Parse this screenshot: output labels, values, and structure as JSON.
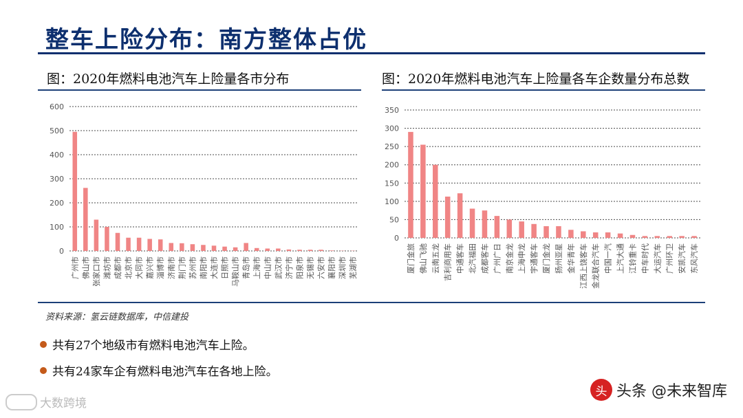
{
  "page": {
    "title": "整车上险分布：南方整体占优",
    "source": "资料来源：氢云链数据库，中信建投",
    "bullets": [
      "共有27个地级市有燃料电池汽车上险。",
      "共有24家车企有燃料电池汽车在各地上险。"
    ],
    "watermark_left": "大数跨境",
    "watermark_right": "头条 @未来智库",
    "watermark_badge": "头"
  },
  "colors": {
    "bar": "#f08585",
    "grid": "#4a4a4a",
    "title": "#0d2f6e",
    "rule": "#1c3f78"
  },
  "chart_data": [
    {
      "type": "bar",
      "title": "图：2020年燃料电池汽车上险量各市分布",
      "categories": [
        "广州市",
        "佛山市",
        "张家口市",
        "潍坊市",
        "成都市",
        "北京市",
        "大同市",
        "嘉兴市",
        "淄博市",
        "济南市",
        "荆门市",
        "苏州市",
        "南阳市",
        "大连市",
        "日照市",
        "马鞍山市",
        "青岛市",
        "上海市",
        "中山市",
        "武汉市",
        "济宁市",
        "阳泉市",
        "无锡市",
        "六安市",
        "襄阳市",
        "深圳市",
        "芜湖市"
      ],
      "values": [
        495,
        262,
        130,
        100,
        75,
        55,
        55,
        50,
        48,
        33,
        32,
        28,
        25,
        22,
        18,
        15,
        33,
        12,
        10,
        10,
        6,
        5,
        5,
        5,
        2,
        1,
        1
      ],
      "ylim": [
        0,
        600
      ],
      "yticks": [
        0,
        100,
        200,
        300,
        400,
        500,
        600
      ],
      "grid": true,
      "xlabel": "",
      "ylabel": ""
    },
    {
      "type": "bar",
      "title": "图：2020年燃料电池汽车上险量各车企数量分布总数",
      "categories": [
        "厦门金旅",
        "佛山飞驰",
        "云南五龙",
        "吉利商用车",
        "中通客车",
        "北汽福田",
        "成都客车",
        "广州广日",
        "南京金龙",
        "上海申龙",
        "宇通客车",
        "厦门金龙",
        "扬州亚星",
        "金华青年",
        "江西上饶客车",
        "金龙联合汽车",
        "中国一汽",
        "上汽大通",
        "江铃重卡",
        "中车时代",
        "大运汽车",
        "广州环卫",
        "安凯汽车",
        "东风汽车"
      ],
      "values": [
        290,
        255,
        200,
        113,
        122,
        80,
        75,
        60,
        50,
        45,
        38,
        32,
        32,
        22,
        18,
        15,
        15,
        12,
        8,
        5,
        5,
        5,
        5,
        5
      ],
      "ylim": [
        0,
        350
      ],
      "yticks": [
        0,
        50,
        100,
        150,
        200,
        250,
        300,
        350
      ],
      "grid": true,
      "xlabel": "",
      "ylabel": ""
    }
  ]
}
